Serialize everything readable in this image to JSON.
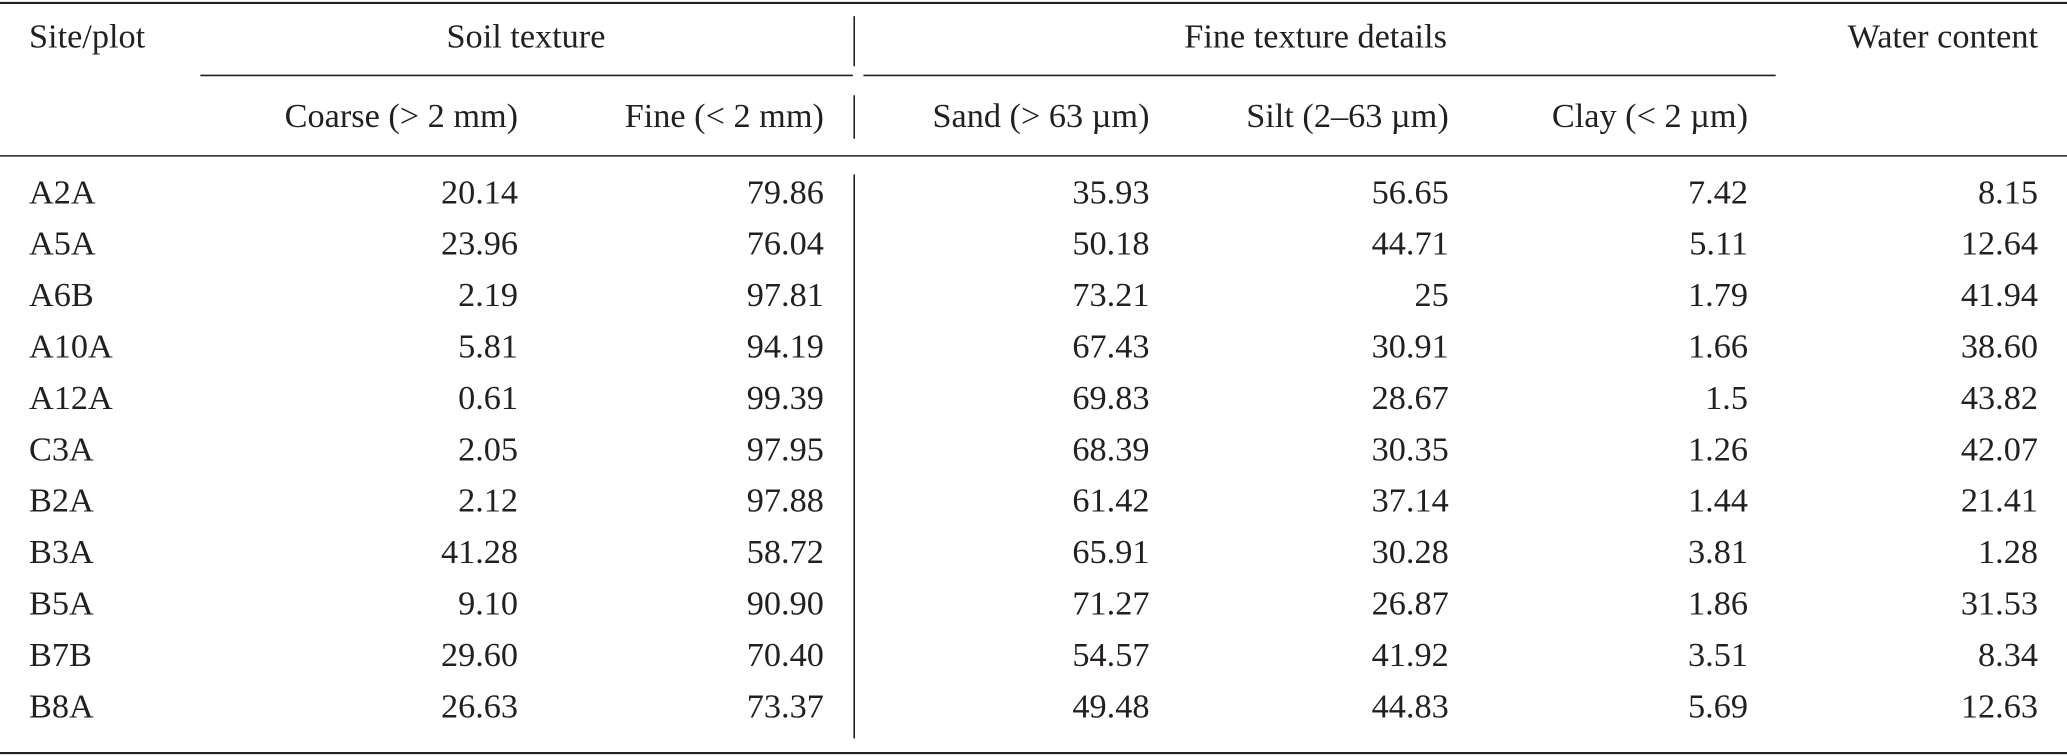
{
  "table": {
    "header": {
      "site": "Site/plot",
      "groups": [
        "Soil texture",
        "Fine texture details"
      ],
      "water": "Water content",
      "columns": [
        "Coarse (> 2 mm)",
        "Fine (< 2 mm)",
        "Sand (> 63 µm)",
        "Silt (2–63 µm)",
        "Clay (< 2 µm)"
      ]
    },
    "rows": [
      [
        "A2A",
        "20.14",
        "79.86",
        "35.93",
        "56.65",
        "7.42",
        "8.15"
      ],
      [
        "A5A",
        "23.96",
        "76.04",
        "50.18",
        "44.71",
        "5.11",
        "12.64"
      ],
      [
        "A6B",
        "2.19",
        "97.81",
        "73.21",
        "25",
        "1.79",
        "41.94"
      ],
      [
        "A10A",
        "5.81",
        "94.19",
        "67.43",
        "30.91",
        "1.66",
        "38.60"
      ],
      [
        "A12A",
        "0.61",
        "99.39",
        "69.83",
        "28.67",
        "1.5",
        "43.82"
      ],
      [
        "C3A",
        "2.05",
        "97.95",
        "68.39",
        "30.35",
        "1.26",
        "42.07"
      ],
      [
        "B2A",
        "2.12",
        "97.88",
        "61.42",
        "37.14",
        "1.44",
        "21.41"
      ],
      [
        "B3A",
        "41.28",
        "58.72",
        "65.91",
        "30.28",
        "3.81",
        "1.28"
      ],
      [
        "B5A",
        "9.10",
        "90.90",
        "71.27",
        "26.87",
        "1.86",
        "31.53"
      ],
      [
        "B7B",
        "29.60",
        "70.40",
        "54.57",
        "41.92",
        "3.51",
        "8.34"
      ],
      [
        "B8A",
        "26.63",
        "73.37",
        "49.48",
        "44.83",
        "5.69",
        "12.63"
      ]
    ]
  }
}
